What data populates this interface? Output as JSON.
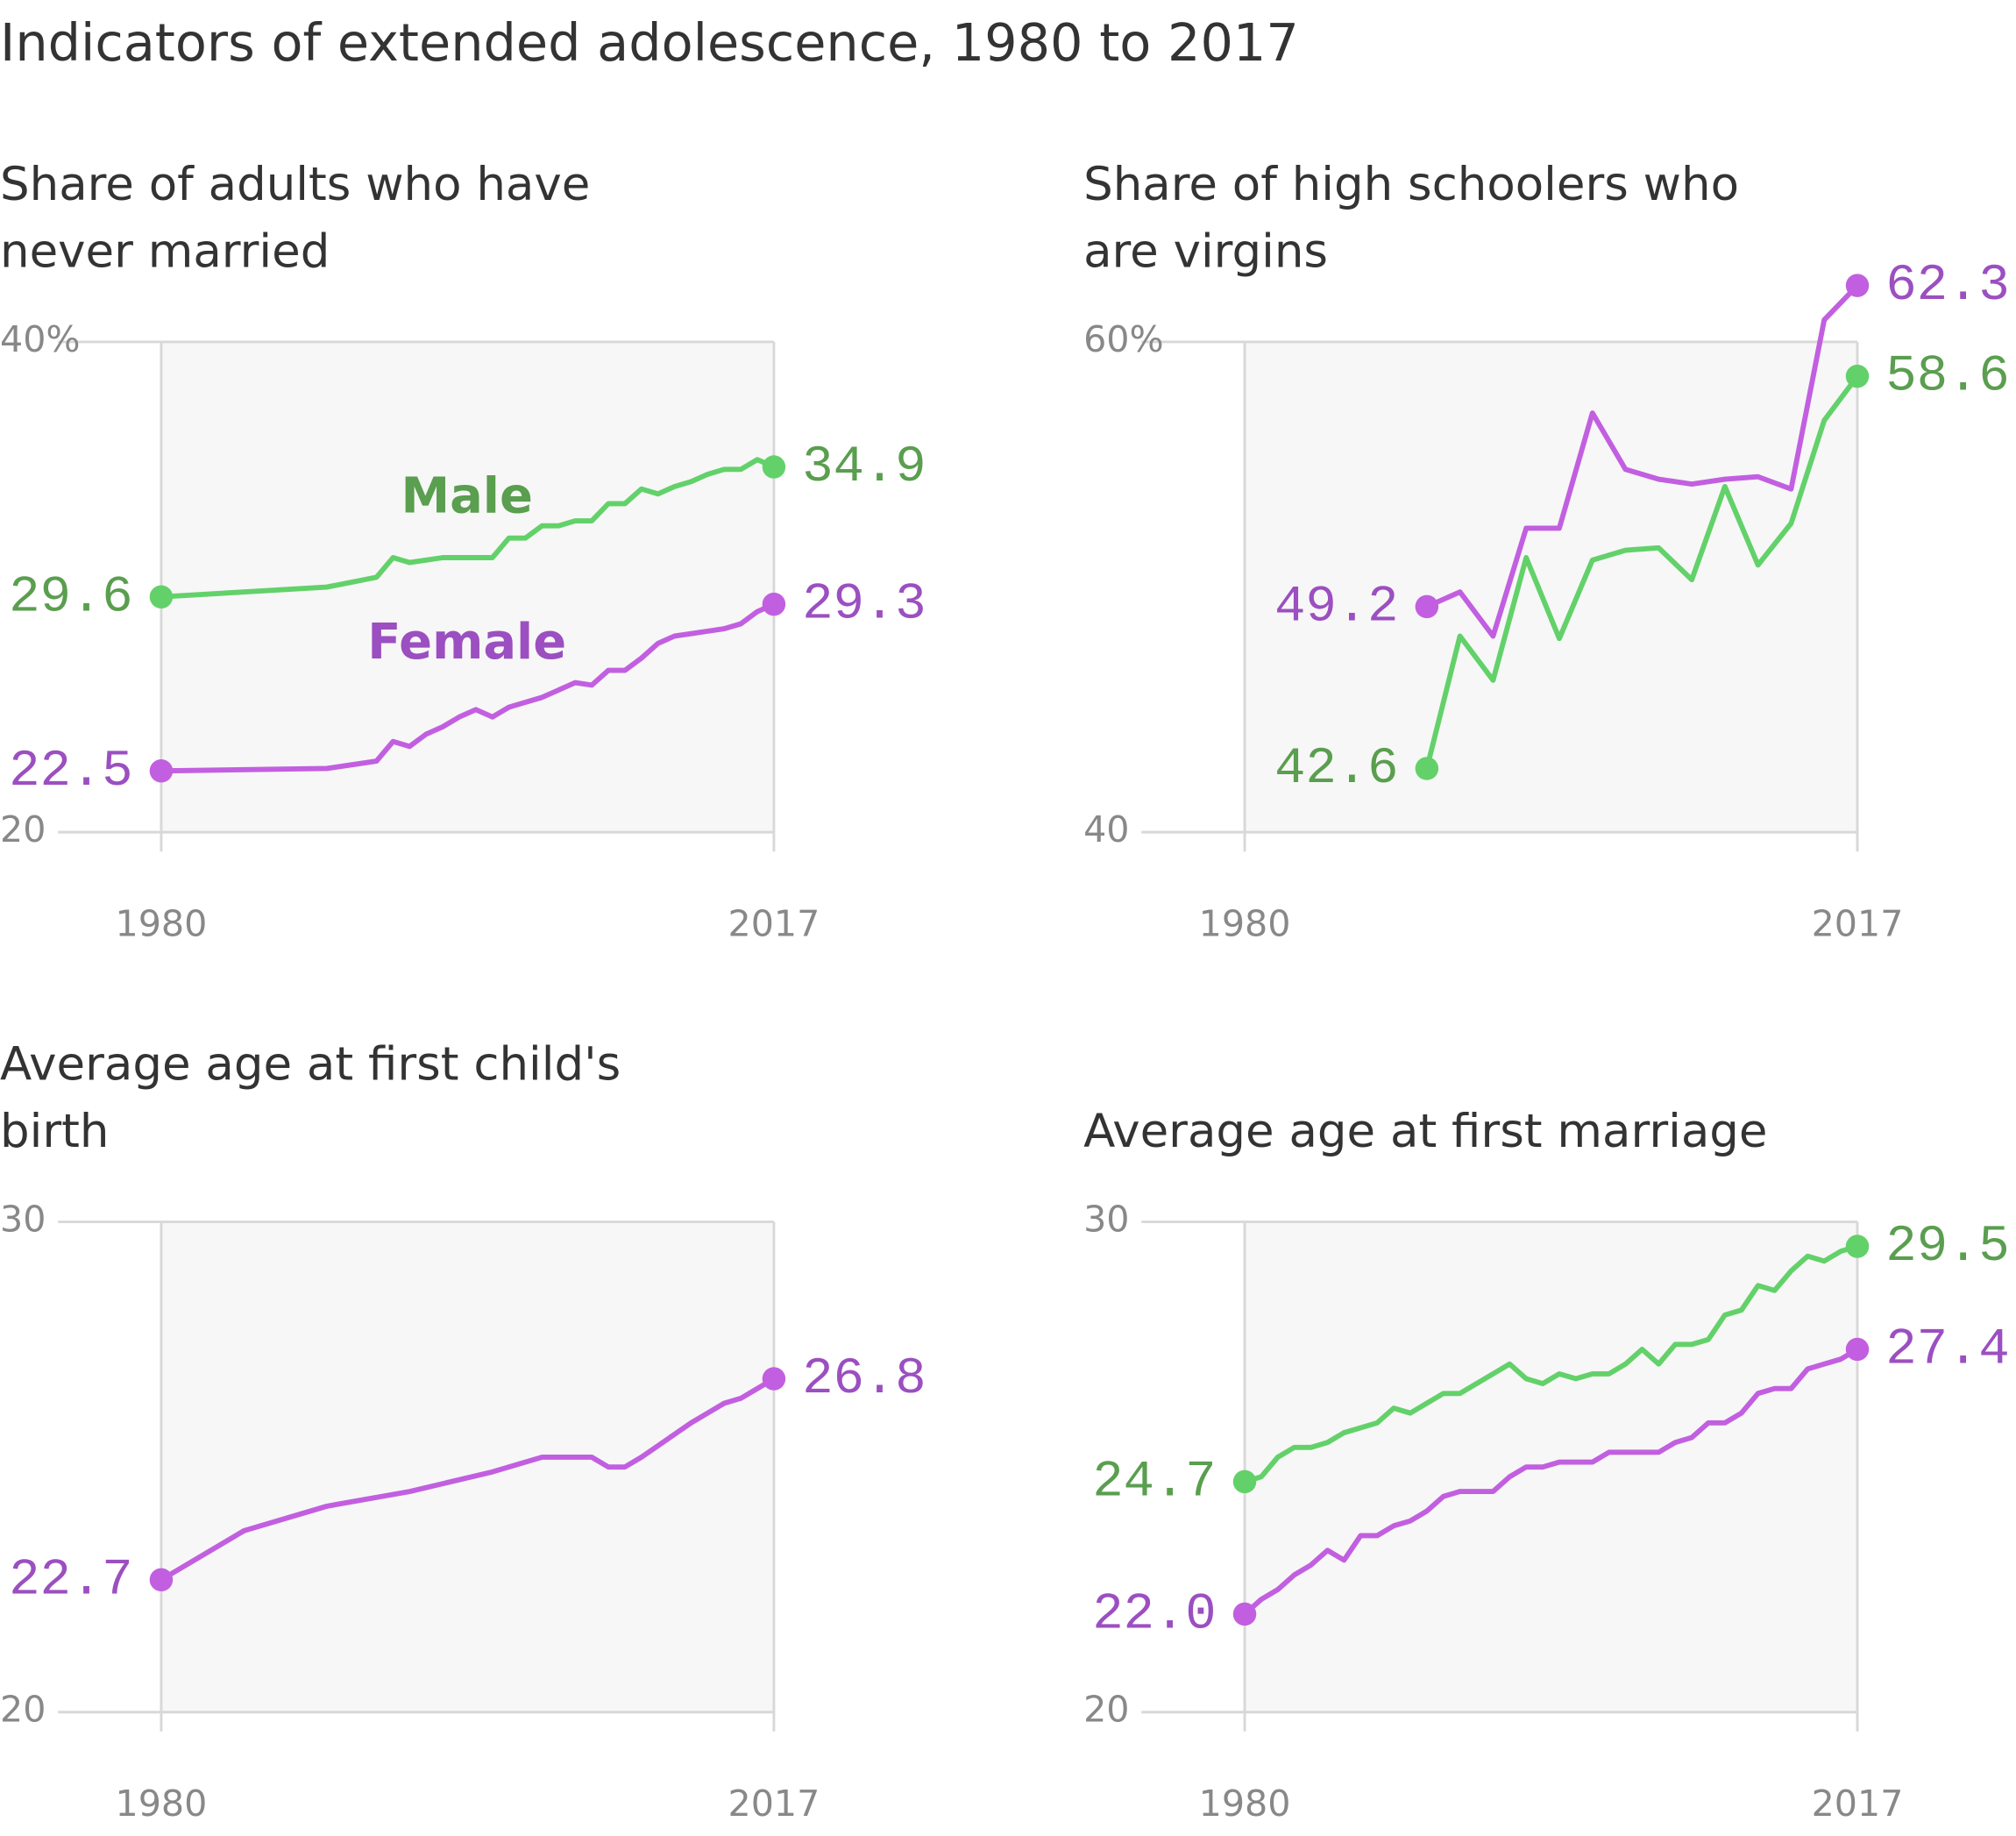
{
  "title": "Indicators of extended adolescence,  1980 to 2017",
  "chart_data": [
    {
      "type": "line",
      "title": "Share of adults who have never married",
      "xlim": [
        1980,
        2017
      ],
      "xticks": [
        1980,
        2017
      ],
      "ylim": [
        20,
        40
      ],
      "yticks": [
        {
          "value": 40,
          "label": "40%"
        },
        20
      ],
      "grid": true,
      "series": [
        {
          "name": "Male",
          "color": "#63d16a",
          "label_color": "#5a9e4f",
          "x": [
            1980,
            1990,
            1993,
            1994,
            1995,
            1997,
            2000,
            2001,
            2002,
            2003,
            2004,
            2005,
            2006,
            2007,
            2008,
            2009,
            2010,
            2011,
            2012,
            2013,
            2014,
            2015,
            2016,
            2017
          ],
          "values": [
            29.6,
            30.0,
            30.4,
            31.2,
            31.0,
            31.2,
            31.2,
            32.0,
            32.0,
            32.5,
            32.5,
            32.7,
            32.7,
            33.4,
            33.4,
            34.0,
            33.8,
            34.1,
            34.3,
            34.6,
            34.8,
            34.8,
            35.2,
            34.9
          ],
          "value_labels": [
            "29.6",
            null,
            null,
            null,
            null,
            null,
            null,
            null,
            null,
            null,
            null,
            null,
            null,
            null,
            null,
            null,
            null,
            null,
            null,
            null,
            null,
            null,
            null,
            "34.9"
          ]
        },
        {
          "name": "Female",
          "color": "#c25fe0",
          "label_color": "#9b4fc0",
          "x": [
            1980,
            1990,
            1993,
            1994,
            1995,
            1996,
            1997,
            1998,
            1999,
            2000,
            2001,
            2002,
            2003,
            2004,
            2005,
            2006,
            2007,
            2008,
            2009,
            2010,
            2011,
            2012,
            2013,
            2014,
            2015,
            2016,
            2017
          ],
          "values": [
            22.5,
            22.6,
            22.9,
            23.7,
            23.5,
            24.0,
            24.3,
            24.7,
            25.0,
            24.7,
            25.1,
            25.3,
            25.5,
            25.8,
            26.1,
            26.0,
            26.6,
            26.6,
            27.1,
            27.7,
            28.0,
            28.1,
            28.2,
            28.3,
            28.5,
            29.0,
            29.3
          ],
          "value_labels": [
            "22.5",
            null,
            null,
            null,
            null,
            null,
            null,
            null,
            null,
            null,
            null,
            null,
            null,
            null,
            null,
            null,
            null,
            null,
            null,
            null,
            null,
            null,
            null,
            null,
            null,
            null,
            "29.3"
          ]
        }
      ]
    },
    {
      "type": "line",
      "title": "Share of high schoolers who are virgins",
      "xlim": [
        1980,
        2017
      ],
      "xticks": [
        1980,
        2017
      ],
      "ylim": [
        40,
        60
      ],
      "yticks": [
        {
          "value": 60,
          "label": "60%"
        },
        40
      ],
      "grid": true,
      "series": [
        {
          "color": "#63d16a",
          "label_color": "#5a9e4f",
          "x": [
            1991,
            1993,
            1995,
            1997,
            1999,
            2001,
            2003,
            2005,
            2007,
            2009,
            2011,
            2013,
            2015,
            2017
          ],
          "values": [
            42.6,
            48.0,
            46.2,
            51.2,
            47.9,
            51.1,
            51.5,
            51.6,
            50.3,
            54.1,
            50.9,
            52.6,
            56.8,
            58.6
          ],
          "value_labels": [
            "42.6",
            null,
            null,
            null,
            null,
            null,
            null,
            null,
            null,
            null,
            null,
            null,
            null,
            "58.6"
          ]
        },
        {
          "color": "#c25fe0",
          "label_color": "#9b4fc0",
          "x": [
            1991,
            1993,
            1995,
            1997,
            1999,
            2001,
            2003,
            2005,
            2007,
            2009,
            2011,
            2013,
            2015,
            2017
          ],
          "values": [
            49.2,
            49.8,
            48.0,
            52.4,
            52.4,
            57.1,
            54.8,
            54.4,
            54.2,
            54.4,
            54.5,
            54.0,
            60.9,
            62.3
          ],
          "value_labels": [
            "49.2",
            null,
            null,
            null,
            null,
            null,
            null,
            null,
            null,
            null,
            null,
            null,
            null,
            "62.3"
          ]
        }
      ]
    },
    {
      "type": "line",
      "title": "Average age at first child's birth",
      "xlim": [
        1980,
        2017
      ],
      "xticks": [
        1980,
        2017
      ],
      "ylim": [
        20,
        30
      ],
      "yticks": [
        30,
        20
      ],
      "grid": true,
      "series": [
        {
          "color": "#c25fe0",
          "label_color": "#9b4fc0",
          "x": [
            1980,
            1985,
            1990,
            1995,
            2000,
            2003,
            2006,
            2007,
            2008,
            2009,
            2012,
            2013,
            2014,
            2015,
            2016,
            2017
          ],
          "values": [
            22.7,
            23.7,
            24.2,
            24.5,
            24.9,
            25.2,
            25.2,
            25.0,
            25.0,
            25.2,
            25.9,
            26.1,
            26.3,
            26.4,
            26.6,
            26.8
          ],
          "value_labels": [
            "22.7",
            null,
            null,
            null,
            null,
            null,
            null,
            null,
            null,
            null,
            null,
            null,
            null,
            null,
            null,
            "26.8"
          ]
        }
      ]
    },
    {
      "type": "line",
      "title": "Average age at first marriage",
      "xlim": [
        1980,
        2017
      ],
      "xticks": [
        1980,
        2017
      ],
      "ylim": [
        20,
        30
      ],
      "yticks": [
        30,
        20
      ],
      "grid": true,
      "series": [
        {
          "color": "#63d16a",
          "label_color": "#5a9e4f",
          "x": [
            1980,
            1981,
            1982,
            1983,
            1984,
            1985,
            1986,
            1987,
            1988,
            1989,
            1990,
            1991,
            1992,
            1993,
            1994,
            1995,
            1996,
            1997,
            1998,
            1999,
            2000,
            2001,
            2002,
            2003,
            2004,
            2005,
            2006,
            2007,
            2008,
            2009,
            2010,
            2011,
            2012,
            2013,
            2014,
            2015,
            2016,
            2017
          ],
          "values": [
            24.7,
            24.8,
            25.2,
            25.4,
            25.4,
            25.5,
            25.7,
            25.8,
            25.9,
            26.2,
            26.1,
            26.3,
            26.5,
            26.5,
            26.7,
            26.9,
            27.1,
            26.8,
            26.7,
            26.9,
            26.8,
            26.9,
            26.9,
            27.1,
            27.4,
            27.1,
            27.5,
            27.5,
            27.6,
            28.1,
            28.2,
            28.7,
            28.6,
            29.0,
            29.3,
            29.2,
            29.4,
            29.5
          ],
          "value_labels": [
            "24.7",
            null,
            null,
            null,
            null,
            null,
            null,
            null,
            null,
            null,
            null,
            null,
            null,
            null,
            null,
            null,
            null,
            null,
            null,
            null,
            null,
            null,
            null,
            null,
            null,
            null,
            null,
            null,
            null,
            null,
            null,
            null,
            null,
            null,
            null,
            null,
            null,
            "29.5"
          ]
        },
        {
          "color": "#c25fe0",
          "label_color": "#9b4fc0",
          "x": [
            1980,
            1981,
            1982,
            1983,
            1984,
            1985,
            1986,
            1987,
            1988,
            1989,
            1990,
            1991,
            1992,
            1993,
            1994,
            1995,
            1996,
            1997,
            1998,
            1999,
            2000,
            2001,
            2002,
            2003,
            2004,
            2005,
            2006,
            2007,
            2008,
            2009,
            2010,
            2011,
            2012,
            2013,
            2014,
            2015,
            2016,
            2017
          ],
          "values": [
            22.0,
            22.3,
            22.5,
            22.8,
            23.0,
            23.3,
            23.1,
            23.6,
            23.6,
            23.8,
            23.9,
            24.1,
            24.4,
            24.5,
            24.5,
            24.5,
            24.8,
            25.0,
            25.0,
            25.1,
            25.1,
            25.1,
            25.3,
            25.3,
            25.3,
            25.3,
            25.5,
            25.6,
            25.9,
            25.9,
            26.1,
            26.5,
            26.6,
            26.6,
            27.0,
            27.1,
            27.2,
            27.4
          ],
          "value_labels": [
            "22.0",
            null,
            null,
            null,
            null,
            null,
            null,
            null,
            null,
            null,
            null,
            null,
            null,
            null,
            null,
            null,
            null,
            null,
            null,
            null,
            null,
            null,
            null,
            null,
            null,
            null,
            null,
            null,
            null,
            null,
            null,
            null,
            null,
            null,
            null,
            null,
            null,
            "27.4"
          ]
        }
      ]
    }
  ]
}
